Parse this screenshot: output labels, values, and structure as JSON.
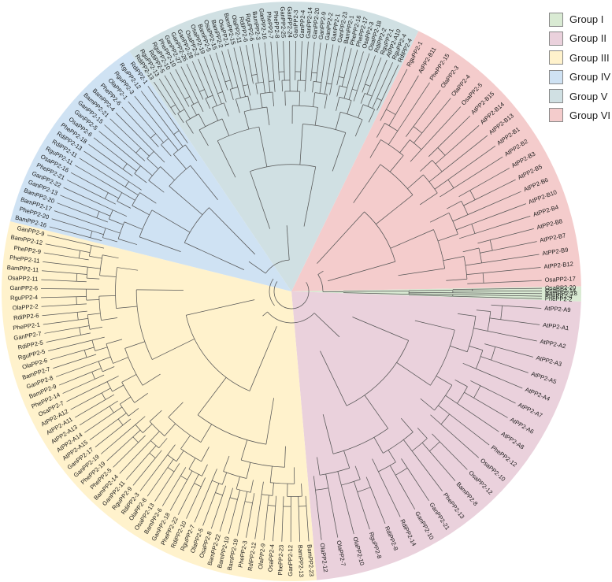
{
  "legend": [
    {
      "label": "Group I",
      "color": "#d9ead3"
    },
    {
      "label": "Group II",
      "color": "#ead1dc"
    },
    {
      "label": "Group III",
      "color": "#fff2cc"
    },
    {
      "label": "Group IV",
      "color": "#cfe2f3"
    },
    {
      "label": "Group V",
      "color": "#d0e0e3"
    },
    {
      "label": "Group VI",
      "color": "#f4cccc"
    }
  ],
  "groups": [
    {
      "name": "Group VI",
      "color": "#f4cccc",
      "leaves": [
        "RguPP2-1",
        "AtPP2-B11",
        "PhePP2-15",
        "OlaPP2-3",
        "OlaPP2-4",
        "OsaPP2-5",
        "AtPP2-B15",
        "AtPP2-B14",
        "AtPP2-B13",
        "AtPP2-B1",
        "AtPP2-B2",
        "AtPP2-B3",
        "AtPP2-B5",
        "AtPP2-B6",
        "AtPP2-B10",
        "AtPP2-B4",
        "AtPP2-B8",
        "AtPP2-B7",
        "AtPP2-B9",
        "AtPP2-B12",
        "OsaPP2-17"
      ]
    },
    {
      "name": "Group I",
      "color": "#d9ead3",
      "leaves": [
        "OsaPP2-20",
        "OsaPP2-14",
        "BamPP2-18",
        "PhePP2-4",
        "PhePP2-2"
      ]
    },
    {
      "name": "Group II",
      "color": "#ead1dc",
      "leaves": [
        "AtPP2-A9",
        "AtPP2-A1",
        "AtPP2-A2",
        "AtPP2-A3",
        "AtPP2-A5",
        "AtPP2-A4",
        "AtPP2-A7",
        "AtPP2-A6",
        "AtPP2-A8",
        "PhePP2-12",
        "OsaPP2-10",
        "OsaPP2-12",
        "BamPP2-8",
        "PhePP2-13",
        "GanPP2-21",
        "GanPP2-10",
        "RdiPP2-14",
        "RdiPP2-8",
        "RguPP2-8",
        "OlaPP2-10",
        "OlaPP2-7",
        "OlaPP2-12"
      ]
    },
    {
      "name": "Group III",
      "color": "#fff2cc",
      "leaves": [
        "BamPP2-23",
        "BamPP2-13",
        "GanPP2-12",
        "PhePP2-23",
        "OsaPP2-4",
        "OlaPP2-9",
        "RdiPP2-12",
        "PhePP2-3",
        "BamPP2-19",
        "BamPP2-10",
        "BamPP2-22",
        "OsaPP2-8",
        "OlaPP2-5",
        "RguPP2-7",
        "RdiPP2-10",
        "PhePP2-22",
        "GanPP2-18",
        "BamPP2-6",
        "OsaPP2-13",
        "OlaPP2-8",
        "RdiPP2-3",
        "RguPP2-9",
        "GanPP2-11",
        "BamPP2-14",
        "PhePP2-5",
        "PhePP2-19",
        "GanPP2-19",
        "GanPP2-17",
        "AtPP2-A15",
        "AtPP2-A14",
        "AtPP2-A13",
        "AtPP2-A11",
        "AtPP2-A12",
        "OsaPP2-7",
        "PhePP2-14",
        "BamPP2-9",
        "GanPP2-8",
        "BamPP2-7",
        "OlaPP2-6",
        "RguPP2-5",
        "RdiPP2-5",
        "GanPP2-7",
        "PhePP2-1",
        "RdiPP2-6",
        "OlaPP2-2",
        "RguPP2-4",
        "GanPP2-6",
        "OsaPP2-11",
        "BamPP2-11",
        "PhePP2-11",
        "PhePP2-9",
        "BamPP2-12",
        "GanPP2-9"
      ]
    },
    {
      "name": "Group IV",
      "color": "#cfe2f3",
      "leaves": [
        "BamPP2-16",
        "PhePP2-20",
        "BamPP2-17",
        "BamPP2-20",
        "GanPP2-13",
        "GanPP2-22",
        "PhePP2-21",
        "OsaPP2-16",
        "RguPP2-11",
        "RdiPP2-11",
        "RdiPP2-13",
        "PhePP2-18",
        "OsaPP2-6",
        "GanPP2-5",
        "GanPP2-15",
        "BamPP2-21",
        "BamPP2-4",
        "PhePP2-6",
        "OlaPP2-1",
        "RguPP2-3",
        "RguPP2-12",
        "RdiPP2-1"
      ]
    },
    {
      "name": "Group V",
      "color": "#d0e0e3",
      "leaves": [
        "RdiPP2-13",
        "RguPP2-13",
        "RdiPP2-5",
        "RguPP2-10",
        "PhePP2-10",
        "GanPP2-27",
        "GanPP2-26",
        "GanPP2-28",
        "OsaPP2-2",
        "OsaPP2-19",
        "BamPP2-5",
        "OsaPP2-15",
        "BamPP2-2",
        "OsaPP2-1",
        "BamPP2-15",
        "OlaPP2-11",
        "RdiPP2-6",
        "RguPP2-6",
        "BamPP2-3",
        "GanPP2-16",
        "PhePP2-7",
        "PhePP2-8",
        "GanPP2-25",
        "GanPP2-24",
        "GanPP2-3",
        "GanPP2-4",
        "GanPP2-14",
        "GanPP2-20",
        "GanPP2-9",
        "GanPP2-2",
        "GanPP2-1",
        "GanPP2-23",
        "BamPP2-1",
        "PhePP2-16",
        "PhePP2-17",
        "OsaPP2-3",
        "OsaPP2-18",
        "RdiPP2-2",
        "RguPP2-1",
        "AtPP2-A10",
        "RguPP2-4",
        "RdiPP2-4"
      ]
    }
  ]
}
